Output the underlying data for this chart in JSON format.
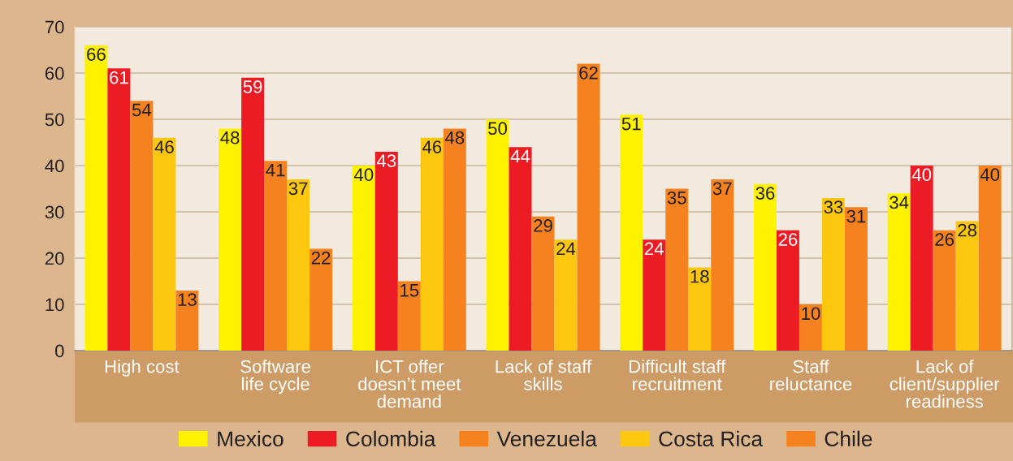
{
  "chart_data": {
    "type": "bar",
    "categories": [
      "High cost",
      "Software\nlife cycle",
      "ICT offer\ndoesn’t meet\ndemand",
      "Lack of staff\nskills",
      "Difficult staff\nrecruitment",
      "Staff\nreluctance",
      "Lack of\nclient/supplier\nreadiness"
    ],
    "series": [
      {
        "name": "Mexico",
        "color": "#fff200",
        "values": [
          66,
          48,
          40,
          50,
          51,
          36,
          34
        ]
      },
      {
        "name": "Colombia",
        "color": "#ed1c24",
        "values": [
          61,
          59,
          43,
          44,
          24,
          26,
          40
        ]
      },
      {
        "name": "Venezuela",
        "color": "#f5821f",
        "values": [
          54,
          41,
          15,
          29,
          35,
          10,
          26
        ]
      },
      {
        "name": "Costa Rica",
        "color": "#fdc70f",
        "values": [
          46,
          37,
          46,
          24,
          18,
          33,
          28
        ]
      },
      {
        "name": "Chile",
        "color": "#f5821f",
        "values": [
          13,
          22,
          48,
          62,
          37,
          31,
          40
        ]
      }
    ],
    "ylim": [
      0,
      70
    ],
    "yticks": [
      0,
      10,
      20,
      30,
      40,
      50,
      60,
      70
    ],
    "grid": "y",
    "legend": "bottom",
    "data_labels": true
  }
}
